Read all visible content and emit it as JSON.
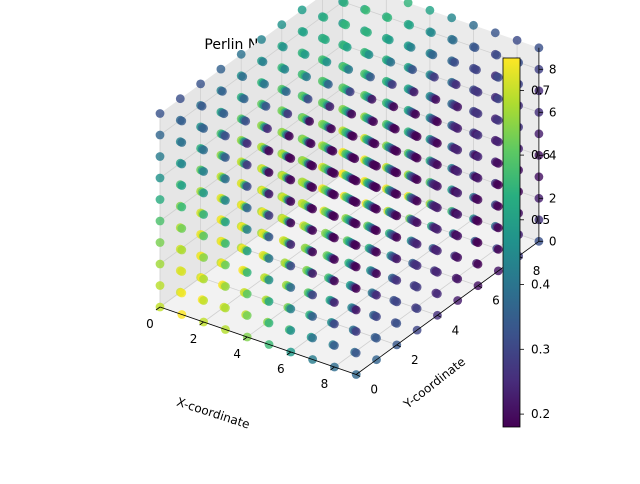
{
  "chart_data": {
    "type": "scatter3d",
    "title": "Perlin Noise 3D Heatmap",
    "xlabel": "X-coordinate",
    "ylabel": "Y-coordinate",
    "zlabel": "",
    "xlim": [
      0,
      9
    ],
    "ylim": [
      0,
      9
    ],
    "zlim": [
      0,
      9
    ],
    "x_ticks": [
      "0",
      "2",
      "4",
      "6",
      "8"
    ],
    "y_ticks": [
      "0",
      "2",
      "4",
      "6",
      "8"
    ],
    "z_ticks": [
      "0",
      "2",
      "4",
      "6",
      "8"
    ],
    "grid": true,
    "colormap": "viridis",
    "colorbar": {
      "min": 0.18,
      "max": 0.75,
      "ticks": [
        "0.2",
        "0.3",
        "0.4",
        "0.5",
        "0.6",
        "0.7"
      ]
    },
    "x": [
      0,
      1,
      2,
      3,
      4,
      5,
      6,
      7,
      8,
      9
    ],
    "y": [
      0,
      1,
      2,
      3,
      4,
      5,
      6,
      7,
      8,
      9
    ],
    "z": [
      0,
      1,
      2,
      3,
      4,
      5,
      6,
      7,
      8,
      9
    ],
    "value_field": "perlin noise value at each (x, y, z) grid point, approx. 0.18 to 0.75"
  }
}
